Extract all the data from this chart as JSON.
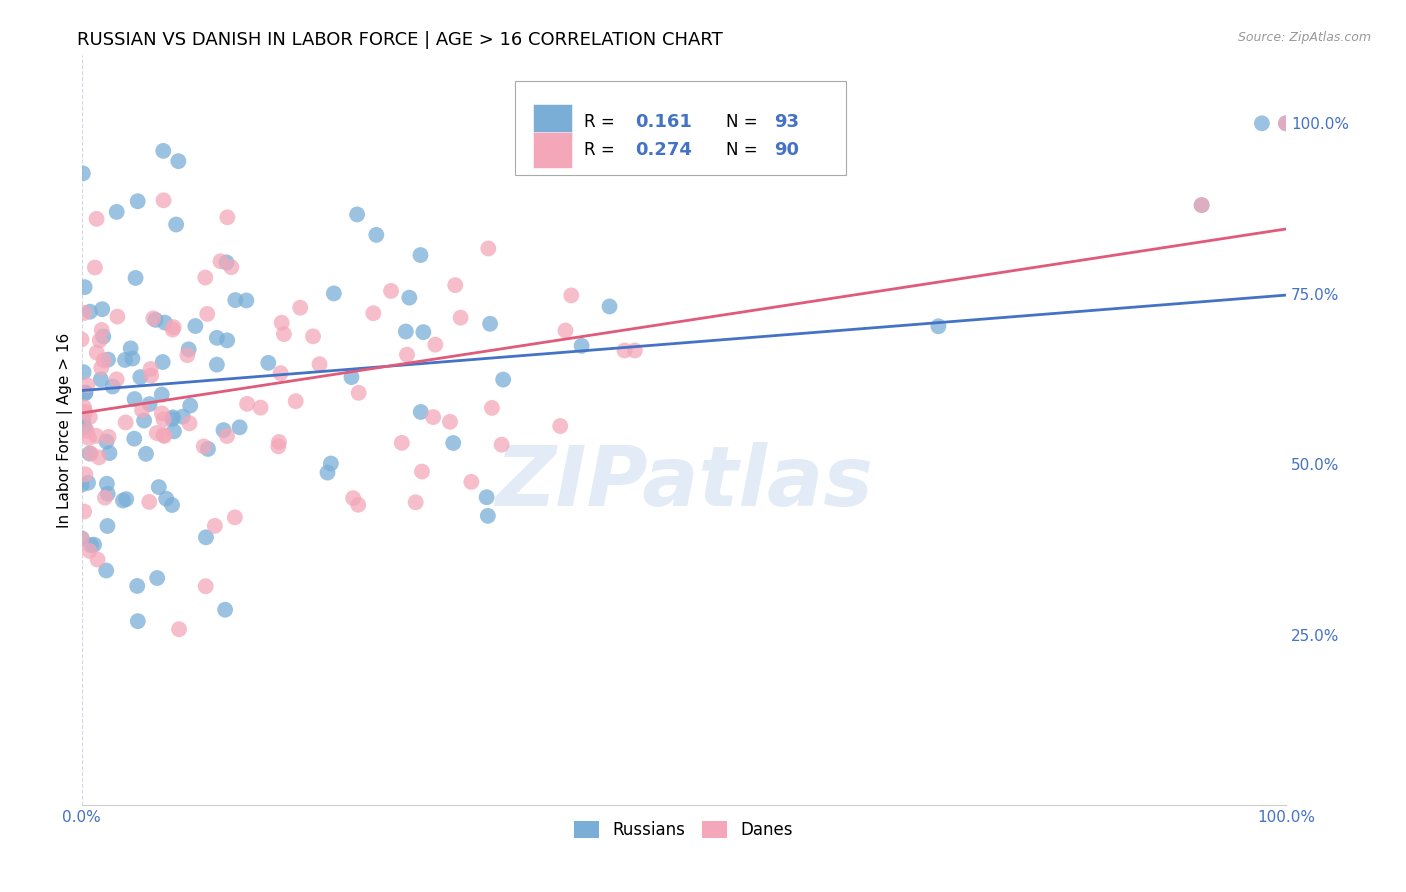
{
  "title": "RUSSIAN VS DANISH IN LABOR FORCE | AGE > 16 CORRELATION CHART",
  "source": "Source: ZipAtlas.com",
  "ylabel": "In Labor Force | Age > 16",
  "xlim": [
    0.0,
    1.0
  ],
  "ylim": [
    0.0,
    1.1
  ],
  "y_tick_labels_right": [
    "25.0%",
    "50.0%",
    "75.0%",
    "100.0%"
  ],
  "y_tick_positions_right": [
    0.25,
    0.5,
    0.75,
    1.0
  ],
  "russian_R": 0.161,
  "russian_N": 93,
  "danish_R": 0.274,
  "danish_N": 90,
  "russian_color": "#7aaed6",
  "danish_color": "#f4a7b9",
  "russian_line_color": "#4472c4",
  "danish_line_color": "#e05a7a",
  "watermark": "ZIPatlas",
  "background_color": "#ffffff",
  "grid_color": "#c8d0dc",
  "title_fontsize": 13,
  "axis_label_fontsize": 11,
  "tick_label_color": "#4472c4",
  "legend_box_color": "#cccccc",
  "russian_line_start": 0.608,
  "russian_line_end": 0.748,
  "danish_line_start": 0.575,
  "danish_line_end": 0.845
}
